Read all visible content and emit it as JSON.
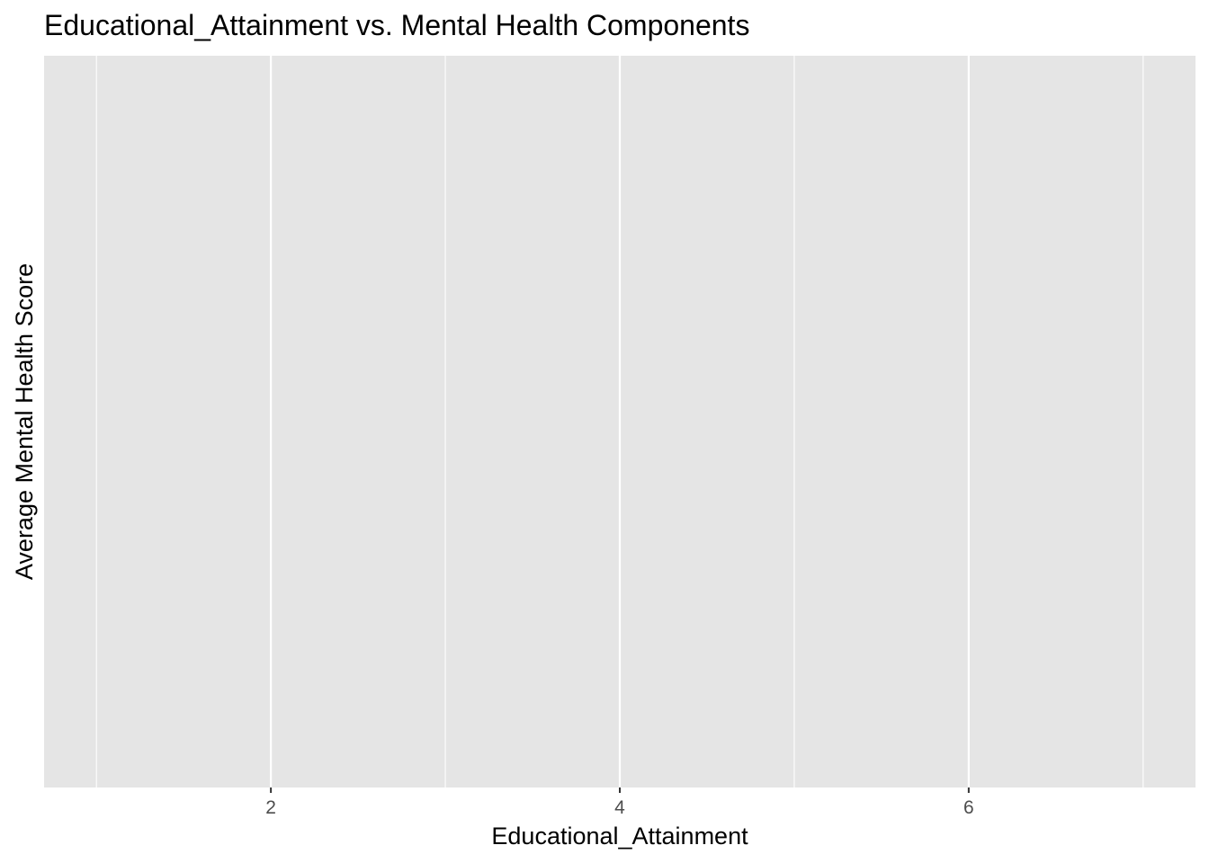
{
  "chart_data": {
    "type": "line",
    "title": "Educational_Attainment vs. Mental Health Components",
    "xlabel": "Educational_Attainment",
    "ylabel": "Average Mental Health Score",
    "xlim": [
      0.7,
      7.3
    ],
    "x_ticks": [
      2,
      4,
      6
    ],
    "x_tick_labels": [
      "2",
      "4",
      "6"
    ],
    "x_minor_ticks": [
      1,
      3,
      5,
      7
    ],
    "y_ticks": [],
    "grid": true,
    "legend": "none",
    "series": [],
    "colors": {
      "panel_background": "#e5e5e5",
      "grid_line": "#ffffff",
      "tick_label": "#4d4d4d",
      "tick_mark": "#333333"
    }
  }
}
